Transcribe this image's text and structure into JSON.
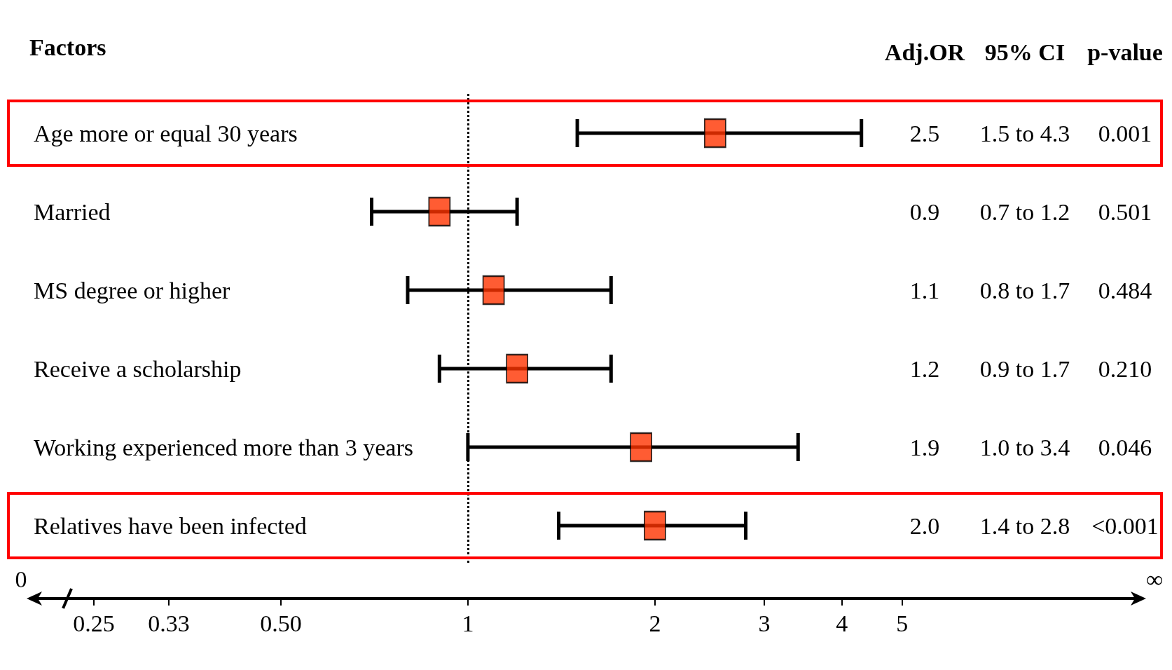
{
  "chart_data": {
    "type": "scatter",
    "ylabel": "Factors",
    "categories": [
      "Age more or equal 30 years",
      "Married",
      "MS degree or higher",
      "Receive a scholarship",
      "Working experienced more than 3 years",
      "Relatives have been infected"
    ],
    "values": [
      2.5,
      0.9,
      1.1,
      1.2,
      1.9,
      2.0
    ],
    "errors": [
      [
        1.5,
        4.3
      ],
      [
        0.7,
        1.2
      ],
      [
        0.8,
        1.7
      ],
      [
        0.9,
        1.7
      ],
      [
        1.0,
        3.4
      ],
      [
        1.4,
        2.8
      ]
    ],
    "color": "#ff3300",
    "marker": "square",
    "orientation": "horizontal",
    "grid": false,
    "log": "x",
    "xlim": [
      0.2,
      12
    ],
    "xticks": [
      0.25,
      0.33,
      {
        "value": 0.5,
        "label": "0.50"
      },
      1,
      2,
      3,
      4,
      5
    ],
    "ref_lines": [
      {
        "axis": "x",
        "value": 1,
        "line_style": "dotted",
        "color": "#000000"
      }
    ],
    "annotations": [
      "Adj.OR",
      "95% CI",
      "p-value",
      "0",
      "∞",
      "2.5",
      "1.5 to 4.3",
      "0.001",
      "0.9",
      "0.7 to 1.2",
      "0.501",
      "1.1",
      "0.8 to 1.7",
      "0.484",
      "1.2",
      "0.9 to 1.7",
      "0.210",
      "1.9",
      "1.0 to 3.4",
      "0.046",
      "2.0",
      "1.4 to 2.8",
      "<0.001"
    ]
  }
}
